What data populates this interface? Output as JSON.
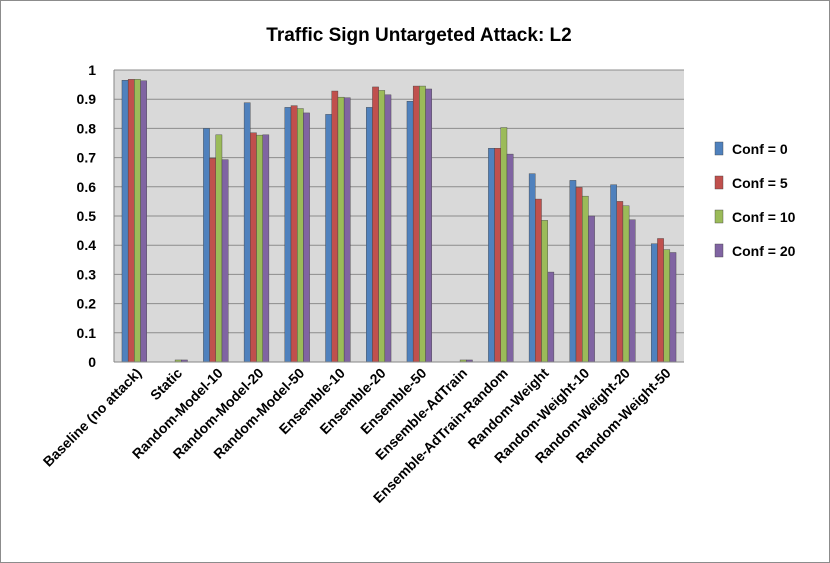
{
  "chart_data": {
    "type": "bar",
    "title": "Traffic Sign Untargeted  Attack: L2",
    "xlabel": "",
    "ylabel": "",
    "ylim": [
      0,
      1
    ],
    "yticks": [
      "0",
      "0.1",
      "0.2",
      "0.3",
      "0.4",
      "0.5",
      "0.6",
      "0.7",
      "0.8",
      "0.9",
      "1"
    ],
    "grid": true,
    "legend_position": "right",
    "categories": [
      "Baseline (no attack)",
      "Static",
      "Random-Model-10",
      "Random-Model-20",
      "Random-Model-50",
      "Ensemble-10",
      "Ensemble-20",
      "Ensemble-50",
      "Ensemble-AdTrain",
      "Ensemble-AdTrain-Random",
      "Random-Weight",
      "Random-Weight-10",
      "Random-Weight-20",
      "Random-Weight-50"
    ],
    "series": [
      {
        "name": "Conf = 0",
        "color": "#4f81bd",
        "values": [
          0.965,
          0.0,
          0.8,
          0.888,
          0.872,
          0.848,
          0.872,
          0.893,
          0.0,
          0.732,
          0.645,
          0.622,
          0.607,
          0.405
        ]
      },
      {
        "name": "Conf = 5",
        "color": "#c0504d",
        "values": [
          0.968,
          0.0,
          0.698,
          0.785,
          0.878,
          0.928,
          0.942,
          0.945,
          0.0,
          0.732,
          0.558,
          0.598,
          0.55,
          0.423
        ]
      },
      {
        "name": "Conf = 10",
        "color": "#9bbb59",
        "values": [
          0.968,
          0.007,
          0.778,
          0.777,
          0.868,
          0.907,
          0.93,
          0.945,
          0.007,
          0.803,
          0.485,
          0.568,
          0.535,
          0.385
        ]
      },
      {
        "name": "Conf = 20",
        "color": "#8064a2",
        "values": [
          0.963,
          0.007,
          0.693,
          0.778,
          0.853,
          0.905,
          0.915,
          0.935,
          0.007,
          0.712,
          0.308,
          0.5,
          0.487,
          0.375
        ]
      }
    ]
  }
}
